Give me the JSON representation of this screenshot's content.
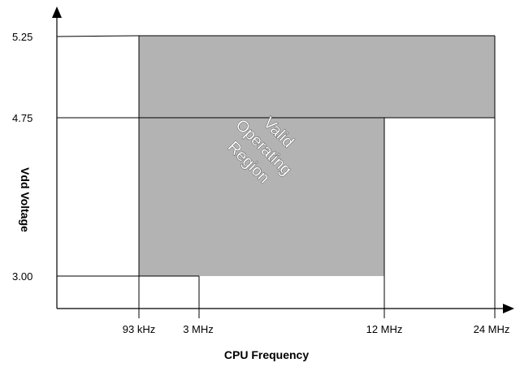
{
  "chart_data": {
    "type": "area",
    "title": "",
    "xlabel": "CPU Frequency",
    "ylabel": "Vdd Voltage",
    "x_ticks": [
      "93 kHz",
      "3 MHz",
      "12 MHz",
      "24 MHz"
    ],
    "y_ticks": [
      "3.00",
      "4.75",
      "5.25"
    ],
    "region_label": [
      "Valid",
      "Operating",
      "Region"
    ],
    "valid_region": [
      {
        "frequency": "93 kHz",
        "vdd_min": 3.0,
        "vdd_max": 5.25
      },
      {
        "frequency": "12 MHz",
        "vdd_min": 3.0,
        "vdd_max": 5.25
      },
      {
        "frequency": "12 MHz",
        "vdd_min": 4.75,
        "vdd_max": 5.25
      },
      {
        "frequency": "24 MHz",
        "vdd_min": 4.75,
        "vdd_max": 5.25
      }
    ],
    "grid": false,
    "colors": {
      "region": "#b3b3b3",
      "axis": "#000000"
    }
  }
}
